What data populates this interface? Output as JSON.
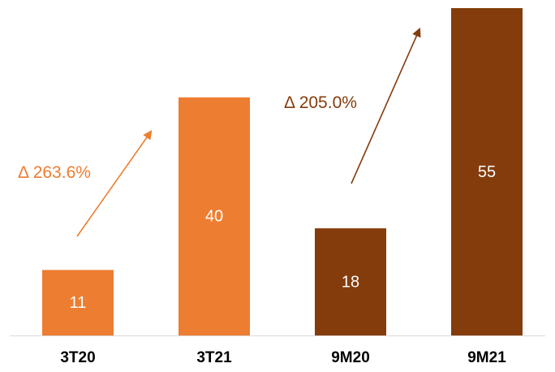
{
  "chart_data": {
    "type": "bar",
    "categories": [
      "3T20",
      "3T21",
      "9M20",
      "9M21"
    ],
    "values": [
      11,
      40,
      18,
      55
    ],
    "value_labels": [
      "11",
      "40",
      "18",
      "55"
    ],
    "bar_colors": [
      "#ED7D31",
      "#ED7D31",
      "#843C0C",
      "#843C0C"
    ],
    "ylim": [
      0,
      55
    ],
    "grid": false,
    "annotations": [
      {
        "text": "Δ 263.6%",
        "from": "3T20",
        "to": "3T21",
        "color": "#ED7D31"
      },
      {
        "text": "Δ 205.0%",
        "from": "9M20",
        "to": "9M21",
        "color": "#843C0C"
      }
    ]
  }
}
